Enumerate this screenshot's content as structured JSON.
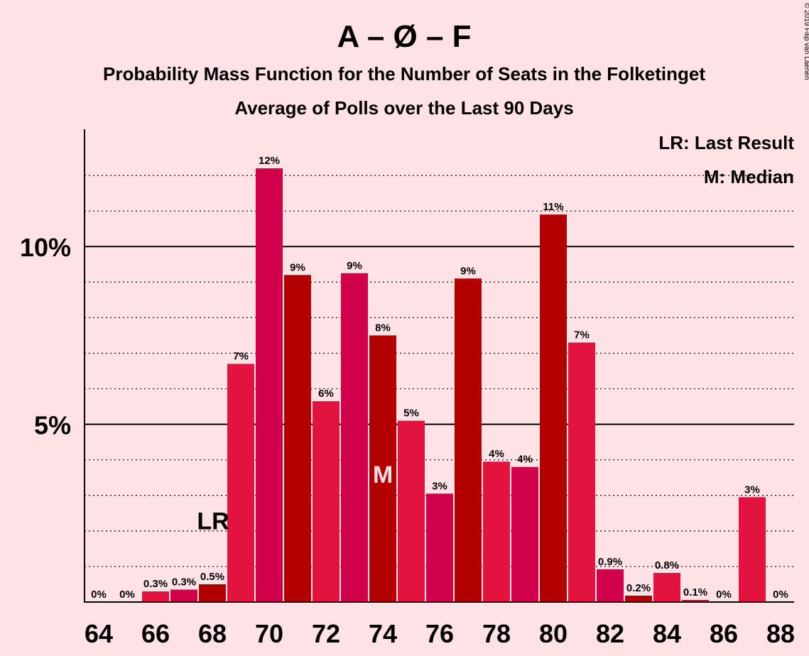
{
  "chart_data": {
    "type": "bar",
    "title": "A – Ø – F",
    "subtitle": "Probability Mass Function for the Number of Seats in the Folketinget",
    "subtitle2": "Average of Polls over the Last 90 Days",
    "copyright": "© 2019 Filip van Laenen",
    "legend": {
      "lr": "LR: Last Result",
      "m": "M: Median",
      "placement": "top-right"
    },
    "ylim": [
      0,
      13.3
    ],
    "y_ticks": [
      {
        "value": 5,
        "label": "5%"
      },
      {
        "value": 10,
        "label": "10%"
      }
    ],
    "x_ticks": [
      "64",
      "66",
      "68",
      "70",
      "72",
      "74",
      "76",
      "78",
      "80",
      "82",
      "84",
      "86",
      "88"
    ],
    "last_result": {
      "seat": 68,
      "label": "LR"
    },
    "median": {
      "seat": 74,
      "label": "M"
    },
    "colors": {
      "a": "#E31340",
      "b": "#D1004A",
      "c": "#B20000",
      "grid": "#000000"
    },
    "bars": [
      {
        "seat": 64,
        "value": 0,
        "label": "0%",
        "color": "a"
      },
      {
        "seat": 65,
        "value": 0,
        "label": "0%",
        "color": "b"
      },
      {
        "seat": 66,
        "value": 0.3,
        "label": "0.3%",
        "color": "a"
      },
      {
        "seat": 67,
        "value": 0.35,
        "label": "0.3%",
        "color": "b"
      },
      {
        "seat": 68,
        "value": 0.5,
        "label": "0.5%",
        "color": "c"
      },
      {
        "seat": 69,
        "value": 6.7,
        "label": "7%",
        "color": "a"
      },
      {
        "seat": 70,
        "value": 12.2,
        "label": "12%",
        "color": "b"
      },
      {
        "seat": 71,
        "value": 9.2,
        "label": "9%",
        "color": "c"
      },
      {
        "seat": 72,
        "value": 5.65,
        "label": "6%",
        "color": "a"
      },
      {
        "seat": 73,
        "value": 9.25,
        "label": "9%",
        "color": "b"
      },
      {
        "seat": 74,
        "value": 7.5,
        "label": "8%",
        "color": "c"
      },
      {
        "seat": 75,
        "value": 5.1,
        "label": "5%",
        "color": "a"
      },
      {
        "seat": 76,
        "value": 3.05,
        "label": "3%",
        "color": "b"
      },
      {
        "seat": 77,
        "value": 9.1,
        "label": "9%",
        "color": "c"
      },
      {
        "seat": 78,
        "value": 3.95,
        "label": "4%",
        "color": "a"
      },
      {
        "seat": 79,
        "value": 3.8,
        "label": "4%",
        "color": "b"
      },
      {
        "seat": 80,
        "value": 10.9,
        "label": "11%",
        "color": "c"
      },
      {
        "seat": 81,
        "value": 7.3,
        "label": "7%",
        "color": "a"
      },
      {
        "seat": 82,
        "value": 0.92,
        "label": "0.9%",
        "color": "b"
      },
      {
        "seat": 83,
        "value": 0.18,
        "label": "0.2%",
        "color": "c"
      },
      {
        "seat": 84,
        "value": 0.82,
        "label": "0.8%",
        "color": "a"
      },
      {
        "seat": 85,
        "value": 0.06,
        "label": "0.1%",
        "color": "b"
      },
      {
        "seat": 86,
        "value": 0,
        "label": "0%",
        "color": "c"
      },
      {
        "seat": 87,
        "value": 2.95,
        "label": "3%",
        "color": "a"
      },
      {
        "seat": 88,
        "value": 0,
        "label": "0%",
        "color": "b"
      }
    ]
  }
}
